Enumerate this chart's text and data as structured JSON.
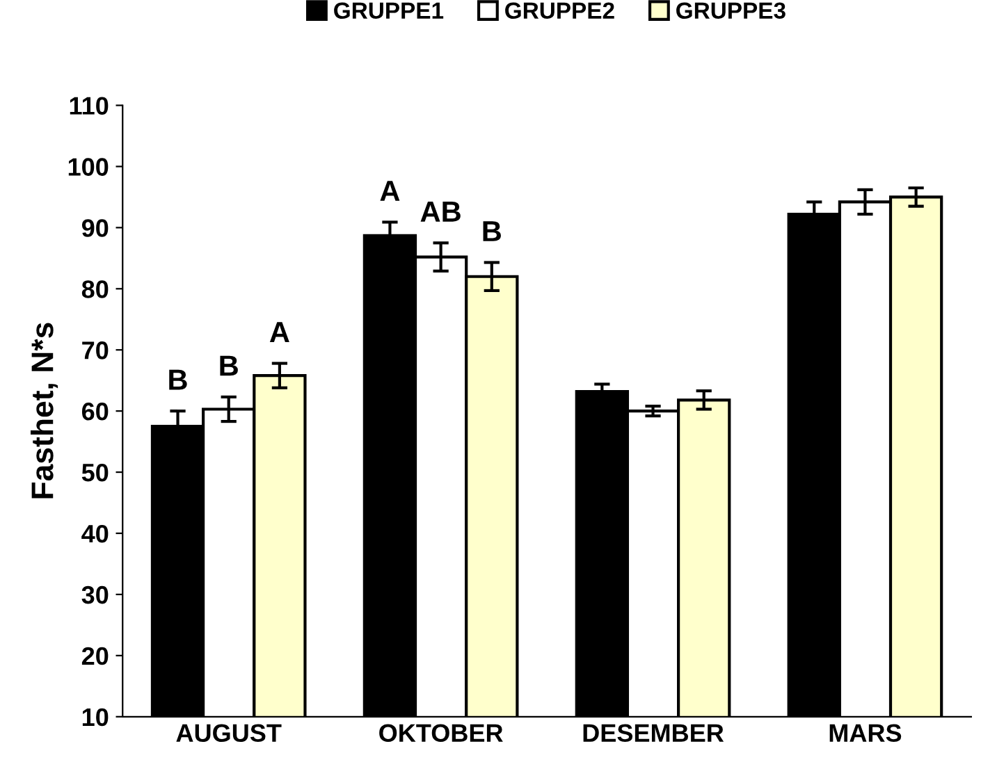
{
  "chart_data": {
    "type": "bar",
    "ylabel": "Fasthet, N*s",
    "categories": [
      "AUGUST",
      "OKTOBER",
      "DESEMBER",
      "MARS"
    ],
    "series": [
      {
        "name": "GRUPPE1",
        "color": "#000000",
        "values": [
          57.5,
          88.7,
          63.2,
          92.2
        ],
        "errors": [
          2.5,
          2.2,
          1.2,
          2.0
        ],
        "value_labels": [
          "B",
          "A",
          null,
          null
        ]
      },
      {
        "name": "GRUPPE2",
        "color": "#ffffff",
        "values": [
          60.3,
          85.2,
          60.0,
          94.2
        ],
        "errors": [
          2.0,
          2.3,
          0.8,
          2.0
        ],
        "value_labels": [
          "B",
          "AB",
          null,
          null
        ]
      },
      {
        "name": "GRUPPE3",
        "color": "#ffffcc",
        "values": [
          65.8,
          82.0,
          61.8,
          95.0
        ],
        "errors": [
          2.0,
          2.3,
          1.5,
          1.5
        ],
        "value_labels": [
          "A",
          "B",
          null,
          null
        ]
      }
    ],
    "ylim": [
      10,
      110
    ],
    "yticks": [
      10,
      20,
      30,
      40,
      50,
      60,
      70,
      80,
      90,
      100,
      110
    ],
    "grid": false,
    "legend": "top"
  }
}
